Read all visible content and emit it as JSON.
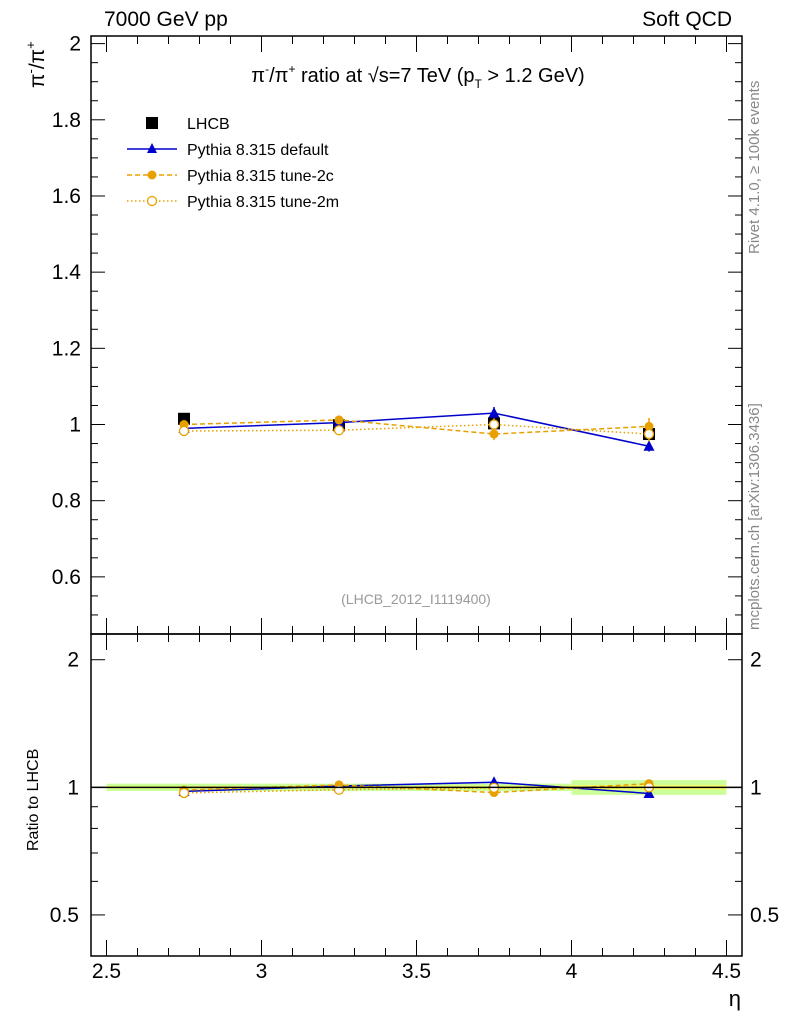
{
  "header": {
    "left": "7000 GeV pp",
    "right": "Soft QCD"
  },
  "side_labels": {
    "rivet": "Rivet 4.1.0, ≥ 100k events",
    "mcplots": "mcplots.cern.ch [arXiv:1306.3436]"
  },
  "colors": {
    "lhcb": "#000000",
    "default": "#0000cc",
    "tune2c": "#e8a000",
    "tune2m": "#e8a000",
    "band_inner": "#ffff66",
    "band_outer": "#ccff99"
  },
  "chart_data": [
    {
      "type": "line",
      "title": "π⁻/π⁺ ratio at √s=7 TeV (p_T > 1.2 GeV)",
      "title_parts": {
        "prefix": "π",
        "sup1": "-",
        "mid": "/π",
        "sup2": "+",
        "ratio_text": " ratio at ",
        "sqrt": "√",
        "s_text": "s=7 TeV (p",
        "sub": "T",
        "suffix": " > 1.2 GeV)"
      },
      "ylabel": "π⁻/π⁺",
      "ylabel_parts": {
        "a": "π",
        "sup1": "-",
        "b": "/π",
        "sup2": "+"
      },
      "xlabel": "η",
      "xlim": [
        2.45,
        4.55
      ],
      "ylim": [
        0.45,
        2.02
      ],
      "yticks": [
        "0.6",
        "0.8",
        "1",
        "1.2",
        "1.4",
        "1.6",
        "1.8",
        "2"
      ],
      "xticks": [
        "2.5",
        "3",
        "3.5",
        "4",
        "4.5"
      ],
      "watermark": "(LHCB_2012_I1119400)",
      "legend_position": "top-left",
      "x": [
        2.75,
        3.25,
        3.75,
        4.25
      ],
      "series": [
        {
          "name": "LHCB",
          "key": "lhcb",
          "marker": "square",
          "values": [
            1.015,
            0.998,
            1.003,
            0.975
          ],
          "errors": [
            0.006,
            0.006,
            0.008,
            0.01
          ]
        },
        {
          "name": "Pythia 8.315 default",
          "key": "default",
          "marker": "triangle",
          "values": [
            0.99,
            1.005,
            1.03,
            0.943
          ],
          "errors": [
            0.008,
            0.012,
            0.016,
            0.014
          ]
        },
        {
          "name": "Pythia 8.315 tune-2c",
          "key": "tune2c",
          "marker": "circle",
          "values": [
            1.0,
            1.012,
            0.975,
            0.995
          ],
          "errors": [
            0.008,
            0.012,
            0.016,
            0.022
          ]
        },
        {
          "name": "Pythia 8.315 tune-2m",
          "key": "tune2m",
          "marker": "open-circle",
          "values": [
            0.983,
            0.985,
            1.0,
            0.975
          ],
          "errors": [
            0.008,
            0.012,
            0.016,
            0.02
          ]
        }
      ]
    },
    {
      "type": "line",
      "title": "",
      "ylabel": "Ratio to LHCB",
      "xlabel": "η",
      "xlim": [
        2.45,
        4.55
      ],
      "ylim": [
        0.4,
        2.3
      ],
      "yscale": "log",
      "yticks": [
        "0.5",
        "1",
        "2"
      ],
      "xticks": [
        "2.5",
        "3",
        "3.5",
        "4",
        "4.5"
      ],
      "reference": 1.0,
      "band": {
        "x_edges": [
          2.5,
          3.0,
          3.5,
          4.0,
          4.5
        ],
        "inner": [
          0.006,
          0.006,
          0.008,
          0.012
        ],
        "outer": [
          0.02,
          0.02,
          0.02,
          0.04
        ]
      },
      "x": [
        2.75,
        3.25,
        3.75,
        4.25
      ],
      "series": [
        {
          "name": "Pythia 8.315 default",
          "key": "default",
          "marker": "triangle",
          "values": [
            0.978,
            1.007,
            1.028,
            0.967
          ]
        },
        {
          "name": "Pythia 8.315 tune-2c",
          "key": "tune2c",
          "marker": "circle",
          "values": [
            0.985,
            1.013,
            0.972,
            1.02
          ]
        },
        {
          "name": "Pythia 8.315 tune-2m",
          "key": "tune2m",
          "marker": "open-circle",
          "values": [
            0.97,
            0.987,
            0.997,
            1.0
          ]
        }
      ]
    }
  ]
}
